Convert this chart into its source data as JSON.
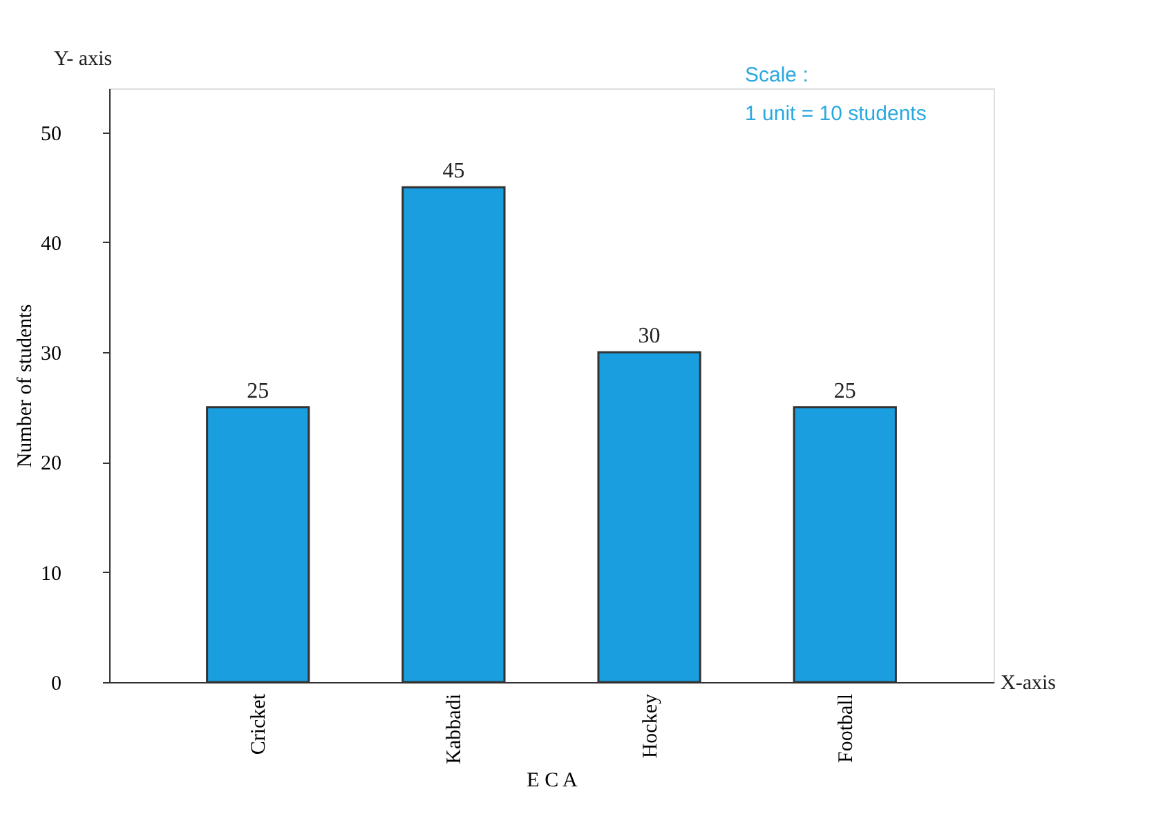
{
  "chart_data": {
    "type": "bar",
    "xlabel": "E C A",
    "ylabel": "Number of students",
    "categories": [
      "Cricket",
      "Kabbadi",
      "Hockey",
      "Football"
    ],
    "values": [
      25,
      45,
      30,
      25
    ],
    "color": "#1a9ee0",
    "ylim": [
      0,
      54
    ],
    "yticks": [
      0,
      10,
      20,
      30,
      40,
      50
    ],
    "grid": false,
    "data_labels": true,
    "annotations": [
      "Y- axis",
      "X-axis",
      "Scale :",
      "1 unit = 10 students"
    ]
  }
}
